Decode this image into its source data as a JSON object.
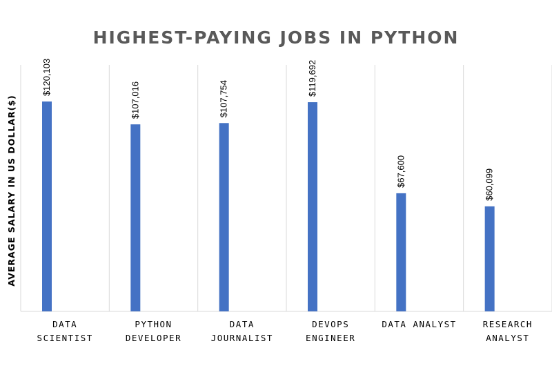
{
  "chart_data": {
    "type": "bar",
    "title": "HIGHEST-PAYING JOBS IN PYTHON",
    "xlabel": "",
    "ylabel": "AVERAGE SALARY IN US DOLLAR($)",
    "categories": [
      [
        "DATA",
        "SCIENTIST"
      ],
      [
        "PYTHON",
        "DEVELOPER"
      ],
      [
        "DATA",
        "JOURNALIST"
      ],
      [
        "DEVOPS",
        "ENGINEER"
      ],
      [
        "DATA ANALYST"
      ],
      [
        "RESEARCH",
        "ANALYST"
      ]
    ],
    "values": [
      120103,
      107016,
      107754,
      119692,
      67600,
      60099
    ],
    "data_labels": [
      "$120,103",
      "$107,016",
      "$107,754",
      "$119,692",
      "$67,600",
      "$60,099"
    ],
    "ylim": [
      0,
      120103
    ],
    "grid": "vertical separators between categories",
    "legend": "none",
    "bar_color": "#4472C4",
    "grid_color": "#D9D9D9"
  }
}
